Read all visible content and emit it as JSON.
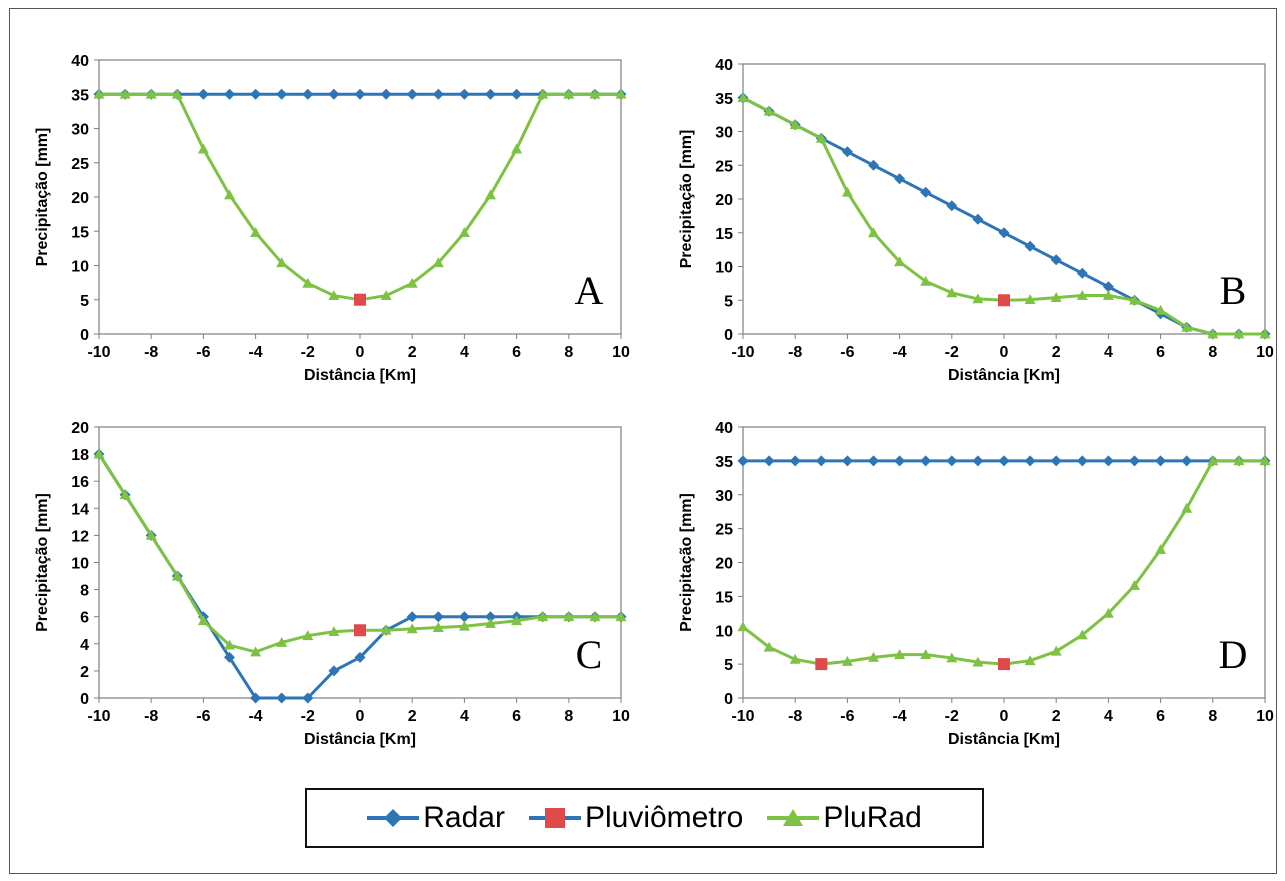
{
  "colors": {
    "radar": "#2e75b6",
    "pluviometro": "#e04a4a",
    "plurad": "#7dc243"
  },
  "legend": {
    "placement": "bottom-center",
    "items": [
      {
        "key": "radar",
        "label": "Radar",
        "marker": "diamond"
      },
      {
        "key": "pluviometro",
        "label": "Pluviômetro",
        "marker": "square"
      },
      {
        "key": "plurad",
        "label": "PluRad",
        "marker": "triangle"
      }
    ]
  },
  "chart_data": [
    {
      "id": "A",
      "type": "line",
      "panel_label": "A",
      "xlabel": "Distância [Km]",
      "ylabel": "Precipitação [mm]",
      "xlim": [
        -10,
        10
      ],
      "ylim": [
        0,
        40
      ],
      "xticks": [
        -10,
        -8,
        -6,
        -4,
        -2,
        0,
        2,
        4,
        6,
        8,
        10
      ],
      "yticks": [
        0,
        5,
        10,
        15,
        20,
        25,
        30,
        35,
        40
      ],
      "grid": false,
      "series": [
        {
          "name": "Radar",
          "marker": "diamond",
          "x": [
            -10,
            -9,
            -8,
            -7,
            -6,
            -5,
            -4,
            -3,
            -2,
            -1,
            0,
            1,
            2,
            3,
            4,
            5,
            6,
            7,
            8,
            9,
            10
          ],
          "values": [
            35,
            35,
            35,
            35,
            35,
            35,
            35,
            35,
            35,
            35,
            35,
            35,
            35,
            35,
            35,
            35,
            35,
            35,
            35,
            35,
            35
          ]
        },
        {
          "name": "PluRad",
          "marker": "triangle",
          "x": [
            -10,
            -9,
            -8,
            -7,
            -6,
            -5,
            -4,
            -3,
            -2,
            -1,
            0,
            1,
            2,
            3,
            4,
            5,
            6,
            7,
            8,
            9,
            10
          ],
          "values": [
            35,
            35,
            35,
            35,
            27,
            20.3,
            14.8,
            10.4,
            7.4,
            5.6,
            5,
            5.6,
            7.4,
            10.4,
            14.8,
            20.3,
            27,
            35,
            35,
            35,
            35
          ]
        },
        {
          "name": "Pluviômetro",
          "marker": "square",
          "x": [
            0
          ],
          "values": [
            5
          ]
        }
      ]
    },
    {
      "id": "B",
      "type": "line",
      "panel_label": "B",
      "xlabel": "Distância [Km]",
      "ylabel": "Precipitação [mm]",
      "xlim": [
        -10,
        10
      ],
      "ylim": [
        0,
        40
      ],
      "xticks": [
        -10,
        -8,
        -6,
        -4,
        -2,
        0,
        2,
        4,
        6,
        8,
        10
      ],
      "yticks": [
        0,
        5,
        10,
        15,
        20,
        25,
        30,
        35,
        40
      ],
      "grid": false,
      "series": [
        {
          "name": "Radar",
          "marker": "diamond",
          "x": [
            -10,
            -9,
            -8,
            -7,
            -6,
            -5,
            -4,
            -3,
            -2,
            -1,
            0,
            1,
            2,
            3,
            4,
            5,
            6,
            7,
            8,
            9,
            10
          ],
          "values": [
            35,
            33,
            31,
            29,
            27,
            25,
            23,
            21,
            19,
            17,
            15,
            13,
            11,
            9,
            7,
            5,
            3,
            1,
            0,
            0,
            0
          ]
        },
        {
          "name": "PluRad",
          "marker": "triangle",
          "x": [
            -10,
            -9,
            -8,
            -7,
            -6,
            -5,
            -4,
            -3,
            -2,
            -1,
            0,
            1,
            2,
            3,
            4,
            5,
            6,
            7,
            8,
            9,
            10
          ],
          "values": [
            35,
            33,
            31,
            29,
            21,
            15,
            10.7,
            7.8,
            6.1,
            5.2,
            5,
            5.1,
            5.4,
            5.7,
            5.7,
            5,
            3.5,
            1,
            0,
            0,
            0
          ]
        },
        {
          "name": "Pluviômetro",
          "marker": "square",
          "x": [
            0
          ],
          "values": [
            5
          ]
        }
      ]
    },
    {
      "id": "C",
      "type": "line",
      "panel_label": "C",
      "xlabel": "Distância [Km]",
      "ylabel": "Precipitação [mm]",
      "xlim": [
        -10,
        10
      ],
      "ylim": [
        0,
        20
      ],
      "xticks": [
        -10,
        -8,
        -6,
        -4,
        -2,
        0,
        2,
        4,
        6,
        8,
        10
      ],
      "yticks": [
        0,
        2,
        4,
        6,
        8,
        10,
        12,
        14,
        16,
        18,
        20
      ],
      "grid": false,
      "series": [
        {
          "name": "Radar",
          "marker": "diamond",
          "x": [
            -10,
            -9,
            -8,
            -7,
            -6,
            -5,
            -4,
            -3,
            -2,
            -1,
            0,
            1,
            2,
            3,
            4,
            5,
            6,
            7,
            8,
            9,
            10
          ],
          "values": [
            18,
            15,
            12,
            9,
            6,
            3,
            0,
            0,
            0,
            2,
            3,
            5,
            6,
            6,
            6,
            6,
            6,
            6,
            6,
            6,
            6
          ]
        },
        {
          "name": "PluRad",
          "marker": "triangle",
          "x": [
            -10,
            -9,
            -8,
            -7,
            -6,
            -5,
            -4,
            -3,
            -2,
            -1,
            0,
            1,
            2,
            3,
            4,
            5,
            6,
            7,
            8,
            9,
            10
          ],
          "values": [
            18,
            15,
            12,
            9,
            5.7,
            3.9,
            3.4,
            4.1,
            4.6,
            4.9,
            5,
            5,
            5.1,
            5.2,
            5.3,
            5.5,
            5.7,
            6,
            6,
            6,
            6
          ]
        },
        {
          "name": "Pluviômetro",
          "marker": "square",
          "x": [
            0
          ],
          "values": [
            5
          ]
        }
      ]
    },
    {
      "id": "D",
      "type": "line",
      "panel_label": "D",
      "xlabel": "Distância [Km]",
      "ylabel": "Precipitação [mm]",
      "xlim": [
        -10,
        10
      ],
      "ylim": [
        0,
        40
      ],
      "xticks": [
        -10,
        -8,
        -6,
        -4,
        -2,
        0,
        2,
        4,
        6,
        8,
        10
      ],
      "yticks": [
        0,
        5,
        10,
        15,
        20,
        25,
        30,
        35,
        40
      ],
      "grid": false,
      "series": [
        {
          "name": "Radar",
          "marker": "diamond",
          "x": [
            -10,
            -9,
            -8,
            -7,
            -6,
            -5,
            -4,
            -3,
            -2,
            -1,
            0,
            1,
            2,
            3,
            4,
            5,
            6,
            7,
            8,
            9,
            10
          ],
          "values": [
            35,
            35,
            35,
            35,
            35,
            35,
            35,
            35,
            35,
            35,
            35,
            35,
            35,
            35,
            35,
            35,
            35,
            35,
            35,
            35,
            35
          ]
        },
        {
          "name": "PluRad",
          "marker": "triangle",
          "x": [
            -10,
            -9,
            -8,
            -7,
            -6,
            -5,
            -4,
            -3,
            -2,
            -1,
            0,
            1,
            2,
            3,
            4,
            5,
            6,
            7,
            8,
            9,
            10
          ],
          "values": [
            10.5,
            7.5,
            5.7,
            5,
            5.4,
            6,
            6.4,
            6.4,
            5.9,
            5.3,
            5,
            5.5,
            6.9,
            9.3,
            12.5,
            16.6,
            21.9,
            28,
            35,
            35,
            35
          ]
        },
        {
          "name": "Pluviômetro",
          "marker": "square",
          "x": [
            -7,
            0
          ],
          "values": [
            5,
            5
          ]
        }
      ]
    }
  ]
}
